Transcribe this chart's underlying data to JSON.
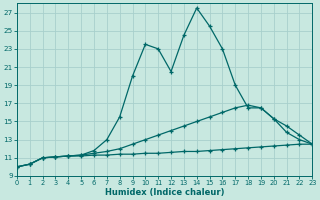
{
  "xlabel": "Humidex (Indice chaleur)",
  "background_color": "#c8e8e0",
  "grid_color": "#a8d0cc",
  "line_color": "#006868",
  "xlim": [
    0,
    23
  ],
  "ylim": [
    9,
    28
  ],
  "xticks": [
    0,
    1,
    2,
    3,
    4,
    5,
    6,
    7,
    8,
    9,
    10,
    11,
    12,
    13,
    14,
    15,
    16,
    17,
    18,
    19,
    20,
    21,
    22,
    23
  ],
  "yticks": [
    9,
    11,
    13,
    15,
    17,
    19,
    21,
    23,
    25,
    27
  ],
  "series": [
    {
      "x": [
        0,
        1,
        2,
        3,
        4,
        5,
        6,
        7,
        8,
        9,
        10,
        11,
        12,
        13,
        14,
        15,
        16,
        17,
        18,
        19,
        20,
        21,
        22,
        23
      ],
      "y": [
        10.0,
        10.3,
        11.0,
        11.1,
        11.2,
        11.2,
        11.3,
        11.3,
        11.4,
        11.4,
        11.5,
        11.5,
        11.6,
        11.7,
        11.7,
        11.8,
        11.9,
        12.0,
        12.1,
        12.2,
        12.3,
        12.4,
        12.5,
        12.5
      ]
    },
    {
      "x": [
        0,
        1,
        2,
        3,
        4,
        5,
        6,
        7,
        8,
        9,
        10,
        11,
        12,
        13,
        14,
        15,
        16,
        17,
        18,
        19,
        20,
        21,
        22,
        23
      ],
      "y": [
        10.0,
        10.3,
        11.0,
        11.1,
        11.2,
        11.3,
        11.5,
        11.7,
        12.0,
        12.5,
        13.0,
        13.5,
        14.0,
        14.5,
        15.0,
        15.5,
        16.0,
        16.5,
        16.8,
        16.5,
        15.3,
        14.5,
        13.5,
        12.5
      ]
    },
    {
      "x": [
        0,
        1,
        2,
        3,
        4,
        5,
        6,
        7,
        8,
        9,
        10,
        11,
        12,
        13,
        14,
        15,
        16,
        17,
        18,
        19,
        20,
        21,
        22,
        23
      ],
      "y": [
        10.0,
        10.3,
        11.0,
        11.1,
        11.2,
        11.3,
        11.8,
        13.0,
        15.5,
        20.0,
        23.5,
        23.0,
        20.5,
        24.5,
        27.5,
        25.5,
        23.0,
        19.0,
        16.5,
        16.5,
        15.3,
        13.8,
        13.0,
        12.5
      ]
    }
  ]
}
